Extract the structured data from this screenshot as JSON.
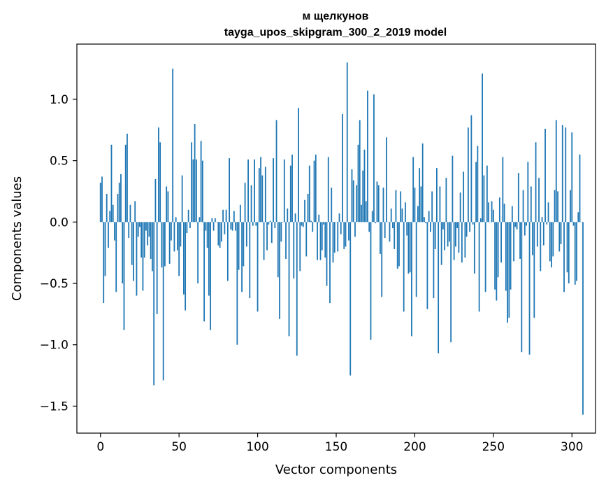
{
  "chart_data": {
    "type": "bar",
    "title": "м щелкунов",
    "subtitle": "tayga_upos_skipgram_300_2_2019 model",
    "xlabel": "Vector components",
    "ylabel": "Components values",
    "xlim": [
      -15,
      315
    ],
    "ylim": [
      -1.72,
      1.45
    ],
    "xticks": [
      0,
      50,
      100,
      150,
      200,
      250,
      300
    ],
    "xtick_labels": [
      "0",
      "50",
      "100",
      "150",
      "200",
      "250",
      "300"
    ],
    "yticks": [
      1.0,
      0.5,
      0.0,
      -0.5,
      -1.0,
      -1.5
    ],
    "ytick_labels": [
      "1.0",
      "0.5",
      "0.0",
      "−0.5",
      "−1.0",
      "−1.5"
    ],
    "bar_color": "#1f77b4",
    "grid": false,
    "values": [
      0.32,
      0.37,
      -0.66,
      -0.44,
      0.23,
      -0.21,
      0.09,
      0.63,
      0.14,
      -0.15,
      -0.57,
      0.23,
      0.32,
      0.39,
      -0.5,
      -0.88,
      0.63,
      0.72,
      -0.13,
      0.14,
      -0.35,
      -0.48,
      0.17,
      -0.6,
      -0.12,
      -0.04,
      -0.29,
      -0.56,
      -0.29,
      -0.07,
      -0.19,
      -0.12,
      -0.3,
      -0.4,
      -1.33,
      0.35,
      -0.75,
      0.77,
      0.65,
      -0.37,
      -1.29,
      -0.36,
      0.29,
      0.25,
      -0.34,
      -0.15,
      1.25,
      -0.24,
      0.04,
      -0.23,
      -0.44,
      -0.2,
      0.38,
      -0.59,
      -0.72,
      -0.09,
      0.1,
      -0.05,
      0.65,
      0.51,
      0.8,
      0.51,
      -0.5,
      0.04,
      0.66,
      0.5,
      -0.81,
      -0.07,
      -0.21,
      -0.6,
      -0.88,
      0.03,
      -0.07,
      0.03,
      0.0,
      -0.19,
      -0.21,
      -0.16,
      0.1,
      -0.1,
      0.1,
      -0.48,
      0.52,
      -0.06,
      -0.07,
      0.09,
      -0.07,
      -1.0,
      -0.39,
      0.14,
      -0.57,
      -0.36,
      0.32,
      -0.2,
      0.51,
      -0.62,
      0.3,
      -0.03,
      0.51,
      -0.03,
      -0.73,
      0.44,
      0.53,
      0.38,
      -0.31,
      0.45,
      -0.23,
      -0.02,
      0.01,
      -0.17,
      0.52,
      -0.05,
      0.83,
      -0.45,
      -0.79,
      -0.16,
      0.0,
      0.51,
      -0.3,
      0.11,
      -0.93,
      0.46,
      0.55,
      -0.46,
      0.07,
      -1.09,
      0.93,
      -0.4,
      -0.03,
      -0.04,
      0.18,
      -0.28,
      0.23,
      0.46,
      0.01,
      -0.08,
      0.5,
      0.55,
      -0.31,
      0.06,
      -0.31,
      -0.23,
      -0.02,
      -0.29,
      -0.52,
      0.53,
      -0.66,
      0.28,
      -0.33,
      -0.25,
      0.0,
      -0.24,
      0.07,
      -0.1,
      0.88,
      -0.22,
      -0.2,
      1.3,
      -0.15,
      -1.25,
      0.43,
      0.34,
      -0.12,
      0.3,
      0.63,
      0.83,
      0.14,
      0.42,
      0.59,
      0.17,
      1.07,
      -0.08,
      -0.96,
      0.09,
      1.04,
      -0.01,
      0.33,
      0.3,
      -0.26,
      -0.61,
      0.28,
      -0.13,
      0.69,
      0.0,
      -0.16,
      0.11,
      -0.05,
      -0.22,
      0.26,
      -0.38,
      -0.36,
      0.25,
      0.11,
      -0.73,
      0.16,
      -0.11,
      -0.42,
      -0.41,
      -0.93,
      0.53,
      0.28,
      -0.61,
      0.13,
      0.44,
      0.29,
      0.64,
      0.04,
      -0.01,
      -0.71,
      0.09,
      -0.08,
      0.25,
      -0.62,
      -0.22,
      0.44,
      -1.07,
      0.29,
      -0.35,
      -0.06,
      -0.23,
      0.36,
      -0.2,
      -0.16,
      -0.98,
      0.54,
      -0.31,
      -0.2,
      -0.05,
      -0.25,
      0.24,
      -0.33,
      0.41,
      -0.29,
      -0.12,
      0.77,
      -0.08,
      0.87,
      -0.02,
      -0.42,
      0.49,
      0.62,
      -0.73,
      0.03,
      1.21,
      0.38,
      -0.57,
      0.46,
      0.16,
      0.0,
      0.17,
      0.1,
      -0.55,
      -0.64,
      -0.45,
      0.2,
      -0.33,
      0.53,
      0.15,
      -0.56,
      -0.82,
      -0.78,
      -0.55,
      0.13,
      -0.32,
      -0.04,
      -0.06,
      0.4,
      -0.3,
      -1.06,
      0.26,
      -0.11,
      -0.03,
      0.49,
      -1.08,
      0.29,
      -0.27,
      -0.78,
      0.65,
      -0.2,
      0.36,
      -0.4,
      0.04,
      -0.19,
      0.76,
      -0.02,
      0.16,
      -0.32,
      -0.37,
      -0.28,
      0.26,
      0.83,
      0.25,
      -0.24,
      -0.18,
      0.79,
      -0.57,
      0.77,
      -0.41,
      -0.5,
      0.26,
      0.73,
      -0.03,
      -0.51,
      -0.48,
      0.08,
      0.55,
      0.0,
      -1.57
    ]
  }
}
